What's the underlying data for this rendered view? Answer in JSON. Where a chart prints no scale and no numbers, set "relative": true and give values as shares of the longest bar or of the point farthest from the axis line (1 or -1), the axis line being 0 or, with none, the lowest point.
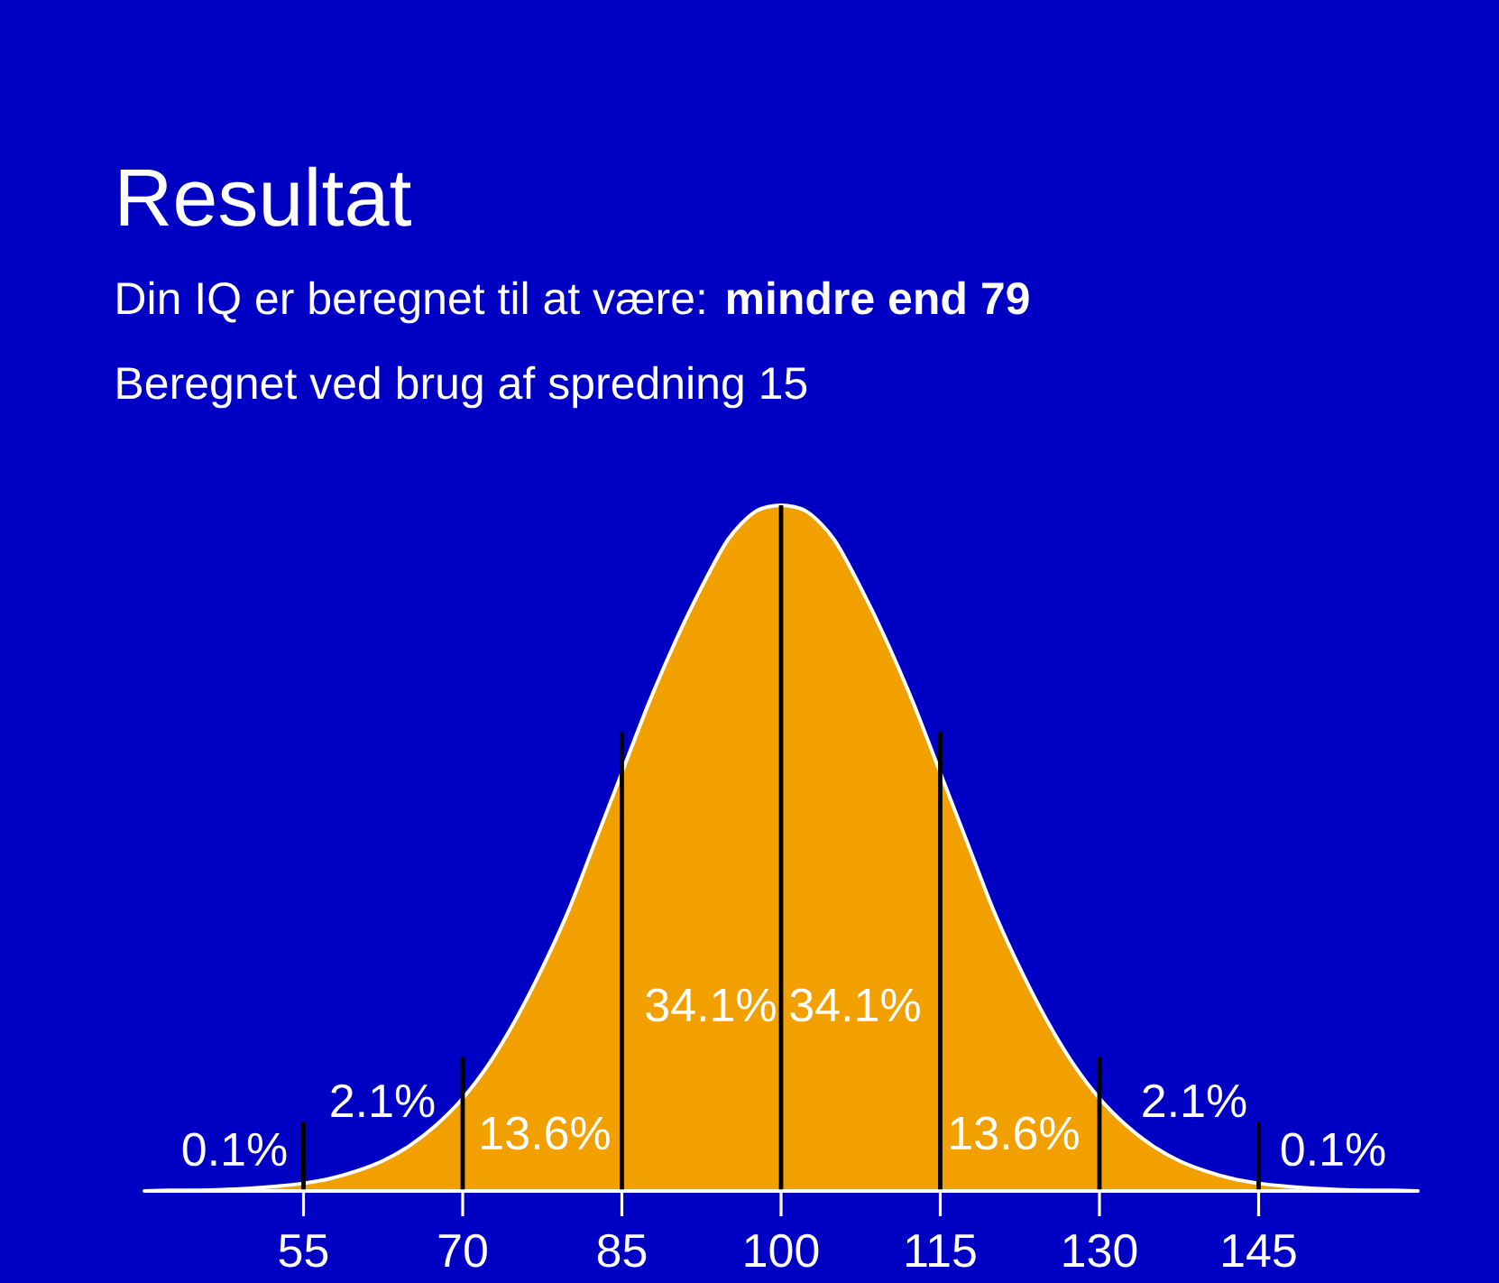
{
  "chart_data": {
    "type": "area",
    "title": "Resultat",
    "subtitle": "Din IQ er beregnet til at være: **mindre end 79**",
    "relative": true,
    "x": [
      40,
      42.5,
      45,
      47.5,
      50,
      52.5,
      55,
      57.5,
      60,
      62.5,
      65,
      67.5,
      70,
      72.5,
      75,
      77.5,
      80,
      82.5,
      85,
      87.5,
      90,
      92.5,
      95,
      97.5,
      100,
      102.5,
      105,
      107.5,
      110,
      112.5,
      115,
      117.5,
      120,
      122.5,
      125,
      127.5,
      130,
      132.5,
      135,
      137.5,
      140,
      142.5,
      145,
      147.5,
      150,
      152.5,
      155,
      157.5,
      160
    ],
    "values": [
      0,
      0.001,
      0.001,
      0.002,
      0.004,
      0.007,
      0.011,
      0.018,
      0.029,
      0.044,
      0.066,
      0.096,
      0.135,
      0.186,
      0.25,
      0.325,
      0.41,
      0.51,
      0.61,
      0.71,
      0.8,
      0.88,
      0.95,
      0.99,
      1,
      0.99,
      0.95,
      0.88,
      0.8,
      0.71,
      0.61,
      0.51,
      0.41,
      0.325,
      0.25,
      0.186,
      0.135,
      0.096,
      0.066,
      0.044,
      0.029,
      0.018,
      0.011,
      0.007,
      0.004,
      0.002,
      0.001,
      0.001,
      0
    ],
    "color": "#f2a000",
    "xlim": [
      40,
      160
    ],
    "xticks": [
      55,
      70,
      85,
      100,
      115,
      130,
      145
    ],
    "ref_lines": [
      {
        "axis": "x",
        "value": 55,
        "color": "#000000"
      },
      {
        "axis": "x",
        "value": 70,
        "color": "#000000"
      },
      {
        "axis": "x",
        "value": 85,
        "color": "#000000"
      },
      {
        "axis": "x",
        "value": 100,
        "color": "#000000"
      },
      {
        "axis": "x",
        "value": 115,
        "color": "#000000"
      },
      {
        "axis": "x",
        "value": 130,
        "color": "#000000"
      },
      {
        "axis": "x",
        "value": 145,
        "color": "#000000"
      }
    ],
    "annotations": [
      "Beregnet ved brug af spredning 15",
      "0.1%",
      "2.1%",
      "13.6%",
      "34.1%",
      "34.1%",
      "13.6%",
      "2.1%",
      "0.1%"
    ]
  }
}
